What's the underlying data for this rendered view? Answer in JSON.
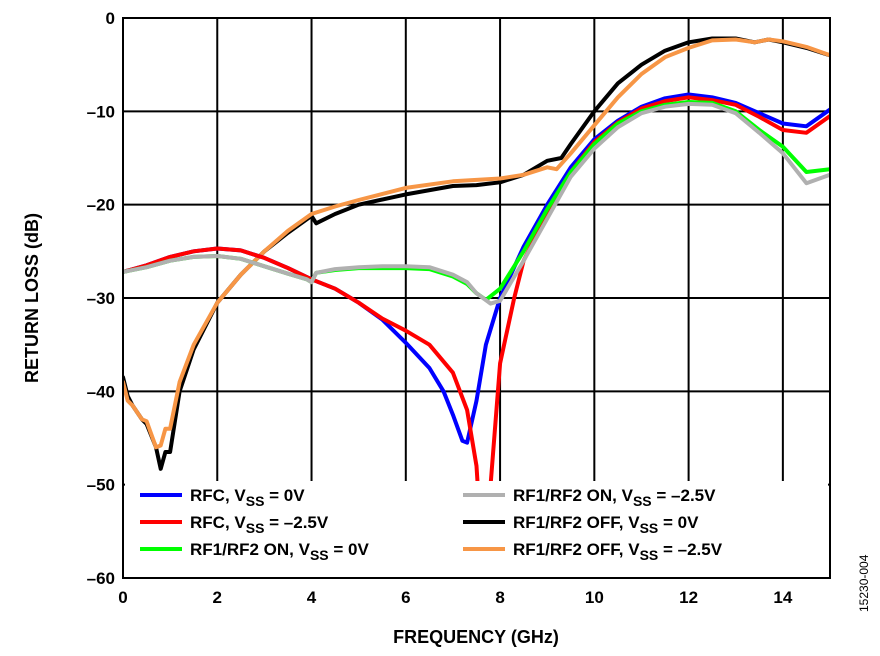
{
  "figure_id": "15230-004",
  "chart_data": {
    "type": "line",
    "title": "",
    "xlabel": "FREQUENCY (GHz)",
    "ylabel": "RETURN LOSS (dB)",
    "xlim": [
      0,
      15
    ],
    "ylim": [
      -60,
      0
    ],
    "xticks": [
      0,
      2,
      4,
      6,
      8,
      10,
      12,
      14
    ],
    "xtick_labels": [
      "0",
      "2",
      "4",
      "6",
      "8",
      "10",
      "12",
      "14"
    ],
    "yticks": [
      0,
      -10,
      -20,
      -30,
      -40,
      -50,
      -60
    ],
    "ytick_labels": [
      "0",
      "–10",
      "–20",
      "–30",
      "–40",
      "–50",
      "–60"
    ],
    "grid": true,
    "legend_placement": "bottom",
    "series": [
      {
        "name": "RFC, VSS = 0V",
        "label": {
          "pre": "RFC, V",
          "sub": "SS",
          "post": " = 0V"
        },
        "color": "#0000ff",
        "x": [
          0,
          0.5,
          1,
          1.5,
          2,
          2.5,
          3,
          3.5,
          4,
          4.5,
          5,
          5.5,
          6,
          6.5,
          6.8,
          7,
          7.2,
          7.3,
          7.5,
          7.7,
          8,
          8.5,
          9,
          9.5,
          10,
          10.5,
          11,
          11.5,
          12,
          12.5,
          13,
          13.5,
          14,
          14.5,
          15
        ],
        "y": [
          -27.2,
          -26.5,
          -25.6,
          -25,
          -24.7,
          -24.9,
          -25.7,
          -26.8,
          -28,
          -29,
          -30.5,
          -32.3,
          -34.8,
          -37.5,
          -40,
          -42.5,
          -45.3,
          -45.5,
          -41,
          -35,
          -30,
          -24.5,
          -20,
          -16,
          -13,
          -11,
          -9.5,
          -8.6,
          -8.2,
          -8.5,
          -9.1,
          -10.2,
          -11.3,
          -11.6,
          -9.8
        ]
      },
      {
        "name": "RFC, VSS = –2.5V",
        "label": {
          "pre": "RFC, V",
          "sub": "SS",
          "post": " = –2.5V"
        },
        "color": "#ff0000",
        "x": [
          0,
          0.5,
          1,
          1.5,
          2,
          2.5,
          3,
          3.5,
          4,
          4.5,
          5,
          5.5,
          6,
          6.5,
          7,
          7.3,
          7.5,
          7.6,
          7.7,
          7.8,
          8,
          8.3,
          8.5,
          9,
          9.5,
          10,
          10.5,
          11,
          11.5,
          12,
          12.5,
          13,
          13.5,
          14,
          14.5,
          15
        ],
        "y": [
          -27.2,
          -26.5,
          -25.6,
          -25,
          -24.7,
          -24.9,
          -25.7,
          -26.8,
          -28,
          -29,
          -30.5,
          -32.2,
          -33.5,
          -35,
          -38,
          -42,
          -48,
          -56,
          -56,
          -50,
          -37,
          -30,
          -26,
          -21,
          -16.5,
          -13.3,
          -11.2,
          -9.7,
          -8.9,
          -8.5,
          -8.8,
          -9.3,
          -10.6,
          -12,
          -12.3,
          -10.5
        ]
      },
      {
        "name": "RF1/RF2 ON, VSS = 0V",
        "label": {
          "pre": "RF1/RF2 ON, V",
          "sub": "SS",
          "post": " = 0V"
        },
        "color": "#00ff00",
        "x": [
          0,
          0.5,
          1,
          1.5,
          2,
          2.5,
          3,
          3.5,
          3.9,
          4,
          4.1,
          4.5,
          5,
          5.5,
          6,
          6.5,
          7,
          7.3,
          7.5,
          7.7,
          8,
          8.5,
          9,
          9.5,
          10,
          10.5,
          11,
          11.5,
          12,
          12.5,
          13,
          13.5,
          14,
          14.5,
          15
        ],
        "y": [
          -27.2,
          -26.7,
          -26,
          -25.6,
          -25.5,
          -25.8,
          -26.6,
          -27.4,
          -28,
          -28.3,
          -27.3,
          -27,
          -26.8,
          -26.8,
          -26.8,
          -26.9,
          -27.7,
          -28.5,
          -29.5,
          -30.2,
          -29,
          -25,
          -20.5,
          -16.5,
          -13.5,
          -11.3,
          -10,
          -9.3,
          -9,
          -9.1,
          -10,
          -12,
          -13.8,
          -16.5,
          -16.2
        ]
      },
      {
        "name": "RF1/RF2 ON, VSS = –2.5V",
        "label": {
          "pre": "RF1/RF2 ON, V",
          "sub": "SS",
          "post": " = –2.5V"
        },
        "color": "#b0b0b0",
        "x": [
          0,
          0.5,
          1,
          1.5,
          2,
          2.5,
          3,
          3.5,
          3.9,
          4,
          4.1,
          4.5,
          5,
          5.5,
          6,
          6.5,
          7,
          7.3,
          7.5,
          7.8,
          8,
          8.5,
          9,
          9.5,
          10,
          10.5,
          11,
          11.5,
          12,
          12.5,
          13,
          13.5,
          14,
          14.5,
          15
        ],
        "y": [
          -27.2,
          -26.7,
          -26,
          -25.6,
          -25.5,
          -25.8,
          -26.6,
          -27.4,
          -28,
          -28.3,
          -27.3,
          -26.9,
          -26.7,
          -26.6,
          -26.6,
          -26.7,
          -27.5,
          -28.3,
          -29.5,
          -30.6,
          -30.3,
          -26,
          -21.5,
          -17,
          -14,
          -11.7,
          -10.2,
          -9.5,
          -9.2,
          -9.3,
          -10.2,
          -12.3,
          -14.5,
          -17.7,
          -16.8
        ]
      },
      {
        "name": "RF1/RF2 OFF, VSS = 0V",
        "label": {
          "pre": "RF1/RF2 OFF, V",
          "sub": "SS",
          "post": " = 0V"
        },
        "color": "#000000",
        "x": [
          0,
          0.1,
          0.2,
          0.4,
          0.5,
          0.7,
          0.8,
          0.9,
          1,
          1.2,
          1.5,
          2,
          2.5,
          3,
          3.5,
          4,
          4.1,
          4.5,
          5,
          6,
          7,
          7.5,
          8,
          8.5,
          9,
          9.3,
          9.5,
          10,
          10.5,
          11,
          11.5,
          12,
          12.5,
          13,
          13.4,
          13.7,
          14,
          14.5,
          15
        ],
        "y": [
          -38.5,
          -40.5,
          -41.5,
          -43,
          -43.5,
          -46,
          -48.3,
          -46.5,
          -46.5,
          -40,
          -35.5,
          -30.5,
          -27.5,
          -25,
          -23,
          -21.2,
          -22,
          -21,
          -20,
          -18.9,
          -18,
          -17.9,
          -17.6,
          -16.8,
          -15.3,
          -15,
          -13.5,
          -10,
          -7,
          -5,
          -3.5,
          -2.6,
          -2.2,
          -2.2,
          -2.6,
          -2.3,
          -2.6,
          -3.2,
          -4
        ]
      },
      {
        "name": "RF1/RF2 OFF, VSS = –2.5V",
        "label": {
          "pre": "RF1/RF2 OFF, V",
          "sub": "SS",
          "post": " = –2.5V"
        },
        "color": "#f79646",
        "x": [
          0,
          0.1,
          0.2,
          0.4,
          0.5,
          0.7,
          0.8,
          0.9,
          1,
          1.2,
          1.5,
          2,
          2.5,
          3,
          3.5,
          4,
          4.5,
          5,
          6,
          7,
          8,
          8.5,
          9,
          9.2,
          9.5,
          10,
          10.5,
          11,
          11.5,
          12,
          12.5,
          13,
          13.4,
          13.7,
          14,
          14.5,
          15
        ],
        "y": [
          -39,
          -41,
          -41.5,
          -43,
          -43.2,
          -46,
          -45.8,
          -44,
          -44,
          -39,
          -35,
          -30.5,
          -27.5,
          -25,
          -22.8,
          -21,
          -20.2,
          -19.5,
          -18.2,
          -17.5,
          -17.2,
          -16.8,
          -16,
          -16.2,
          -14.5,
          -11.5,
          -8.5,
          -6,
          -4.2,
          -3.2,
          -2.4,
          -2.3,
          -2.6,
          -2.3,
          -2.5,
          -3.1,
          -4
        ]
      }
    ]
  }
}
